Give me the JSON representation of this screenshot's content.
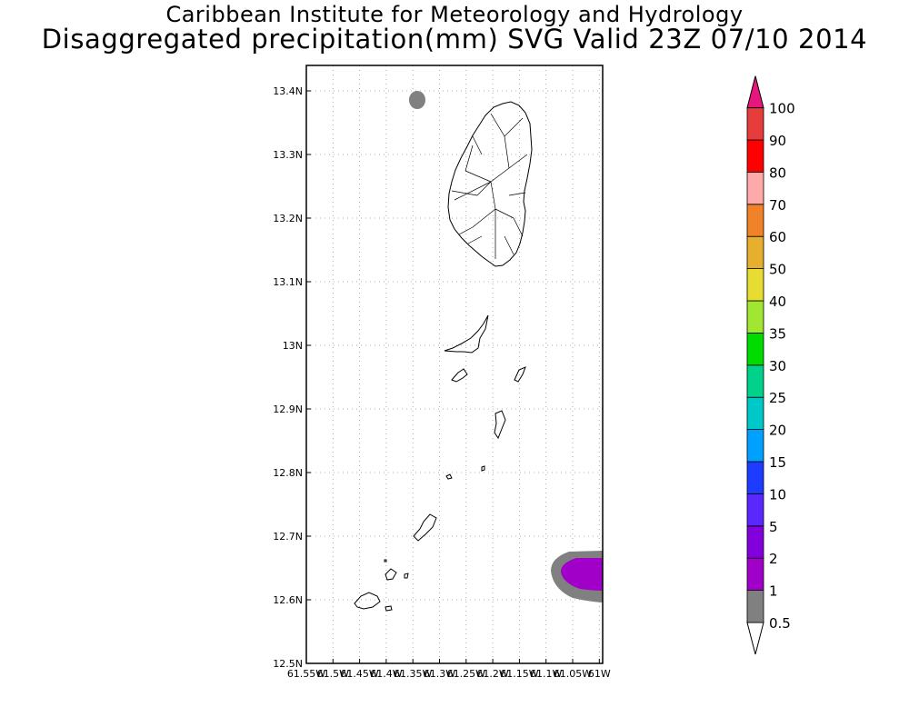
{
  "title_line1": "Caribbean Institute for Meteorology and Hydrology",
  "title_line2": "Disaggregated precipitation(mm) SVG Valid 23Z 07/10 2014",
  "map": {
    "lat_ticks": [
      "13.4N",
      "13.3N",
      "13.2N",
      "13.1N",
      "13N",
      "12.9N",
      "12.8N",
      "12.7N",
      "12.6N",
      "12.5N"
    ],
    "lon_ticks": [
      "61.55W",
      "61.5W",
      "61.45W",
      "61.4W",
      "61.35W",
      "61.3W",
      "61.25W",
      "61.2W",
      "61.15W",
      "61.1W",
      "61.05W",
      "61W"
    ],
    "grid": "dotted",
    "lat_range": [
      12.5,
      13.45
    ],
    "lon_range": [
      61.55,
      61.0
    ]
  },
  "colorbar": {
    "levels": [
      "0.5",
      "1",
      "2",
      "5",
      "10",
      "15",
      "20",
      "25",
      "30",
      "35",
      "40",
      "50",
      "60",
      "70",
      "80",
      "90",
      "100"
    ],
    "colors": [
      "#808080",
      "#a000c8",
      "#8200dc",
      "#5a28ff",
      "#1e3cff",
      "#00a0ff",
      "#00c8c8",
      "#00d28c",
      "#00dc00",
      "#a0e632",
      "#e6dc32",
      "#e6af2d",
      "#f08228",
      "#ffaaaa",
      "#ff0000",
      "#e63c3c"
    ],
    "lower_arrow_color": "#ffffff",
    "upper_arrow_color": "#e6167d"
  }
}
